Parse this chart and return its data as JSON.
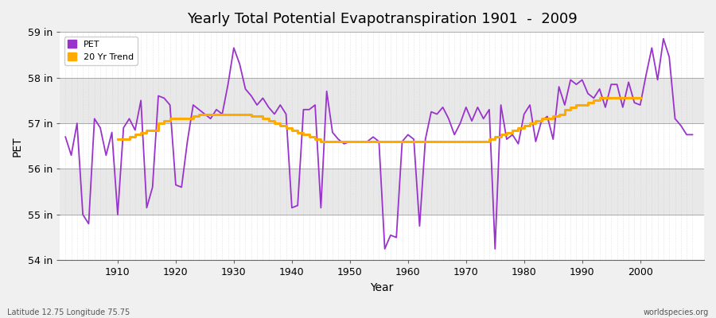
{
  "title": "Yearly Total Potential Evapotranspiration 1901  -  2009",
  "xlabel": "Year",
  "ylabel": "PET",
  "footnote_left": "Latitude 12.75 Longitude 75.75",
  "footnote_right": "worldspecies.org",
  "ylim": [
    54,
    59
  ],
  "ytick_labels": [
    "54 in",
    "55 in",
    "56 in",
    "57 in",
    "58 in",
    "59 in"
  ],
  "ytick_values": [
    54,
    55,
    56,
    57,
    58,
    59
  ],
  "pet_color": "#9933cc",
  "trend_color": "#ffaa00",
  "bg_color": "#f0f0f0",
  "band_colors": [
    "#ffffff",
    "#e8e8e8"
  ],
  "legend_labels": [
    "PET",
    "20 Yr Trend"
  ],
  "years": [
    1901,
    1902,
    1903,
    1904,
    1905,
    1906,
    1907,
    1908,
    1909,
    1910,
    1911,
    1912,
    1913,
    1914,
    1915,
    1916,
    1917,
    1918,
    1919,
    1920,
    1921,
    1922,
    1923,
    1924,
    1925,
    1926,
    1927,
    1928,
    1929,
    1930,
    1931,
    1932,
    1933,
    1934,
    1935,
    1936,
    1937,
    1938,
    1939,
    1940,
    1941,
    1942,
    1943,
    1944,
    1945,
    1946,
    1947,
    1948,
    1949,
    1950,
    1951,
    1952,
    1953,
    1954,
    1955,
    1956,
    1957,
    1958,
    1959,
    1960,
    1961,
    1962,
    1963,
    1964,
    1965,
    1966,
    1967,
    1968,
    1969,
    1970,
    1971,
    1972,
    1973,
    1974,
    1975,
    1976,
    1977,
    1978,
    1979,
    1980,
    1981,
    1982,
    1983,
    1984,
    1985,
    1986,
    1987,
    1988,
    1989,
    1990,
    1991,
    1992,
    1993,
    1994,
    1995,
    1996,
    1997,
    1998,
    1999,
    2000,
    2001,
    2002,
    2003,
    2004,
    2005,
    2006,
    2007,
    2008,
    2009
  ],
  "pet_values": [
    56.7,
    56.3,
    57.0,
    55.0,
    54.8,
    57.1,
    56.9,
    56.3,
    56.8,
    55.0,
    56.9,
    57.1,
    56.85,
    57.5,
    55.15,
    55.6,
    57.6,
    57.55,
    57.4,
    55.65,
    55.6,
    56.6,
    57.4,
    57.3,
    57.2,
    57.1,
    57.3,
    57.2,
    57.85,
    58.65,
    58.3,
    57.75,
    57.6,
    57.4,
    57.55,
    57.35,
    57.2,
    57.4,
    57.2,
    55.15,
    55.2,
    57.3,
    57.3,
    57.4,
    55.15,
    57.7,
    56.8,
    56.65,
    56.55,
    56.6,
    56.6,
    56.6,
    56.6,
    56.7,
    56.6,
    54.25,
    54.55,
    54.5,
    56.6,
    56.75,
    56.65,
    54.75,
    56.65,
    57.25,
    57.2,
    57.35,
    57.1,
    56.75,
    57.0,
    57.35,
    57.05,
    57.35,
    57.1,
    57.3,
    54.25,
    57.4,
    56.65,
    56.75,
    56.55,
    57.2,
    57.4,
    56.6,
    57.05,
    57.15,
    56.65,
    57.8,
    57.4,
    57.95,
    57.85,
    57.95,
    57.65,
    57.55,
    57.75,
    57.35,
    57.85,
    57.85,
    57.35,
    57.9,
    57.45,
    57.4,
    58.05,
    58.65,
    57.95,
    58.85,
    58.45,
    57.1,
    56.95,
    56.75,
    56.75
  ],
  "trend_values": [
    null,
    null,
    null,
    null,
    null,
    null,
    null,
    null,
    null,
    56.65,
    56.65,
    56.7,
    56.75,
    56.8,
    56.85,
    56.85,
    57.0,
    57.05,
    57.1,
    57.1,
    57.1,
    57.1,
    57.15,
    57.2,
    57.2,
    57.2,
    57.2,
    57.2,
    57.2,
    57.2,
    57.2,
    57.2,
    57.15,
    57.15,
    57.1,
    57.05,
    57.0,
    56.95,
    56.9,
    56.85,
    56.8,
    56.75,
    56.7,
    56.65,
    56.6,
    56.6,
    56.6,
    56.6,
    56.6,
    56.6,
    56.6,
    56.6,
    56.6,
    56.6,
    56.6,
    56.6,
    56.6,
    56.6,
    56.6,
    56.6,
    56.6,
    56.6,
    56.6,
    56.6,
    56.6,
    56.6,
    56.6,
    56.6,
    56.6,
    56.6,
    56.6,
    56.6,
    56.6,
    56.65,
    56.7,
    56.75,
    56.8,
    56.85,
    56.9,
    56.95,
    57.0,
    57.05,
    57.1,
    57.1,
    57.15,
    57.2,
    57.3,
    57.35,
    57.4,
    57.4,
    57.45,
    57.5,
    57.55,
    57.55,
    57.55,
    57.55,
    57.55,
    57.55,
    57.55,
    57.55,
    null,
    null,
    null,
    null,
    null,
    null,
    null,
    null,
    null
  ]
}
